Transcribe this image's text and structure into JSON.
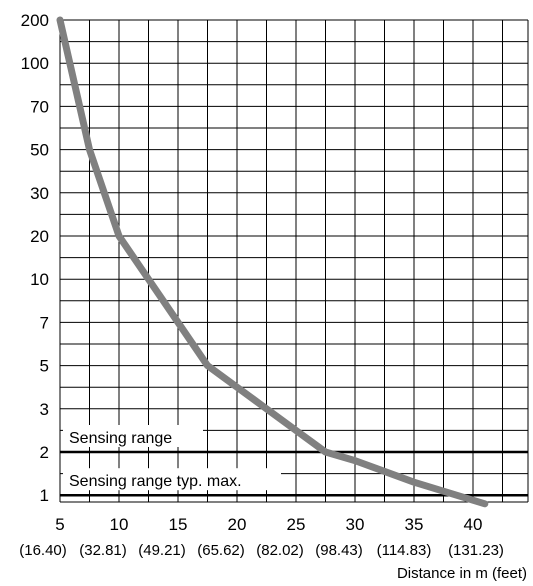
{
  "chart_data": {
    "type": "line",
    "title": "",
    "xlabel": "Distance in m (feet)",
    "ylabel": "",
    "x_ticks": [
      "5",
      "10",
      "15",
      "20",
      "25",
      "30",
      "35",
      "40"
    ],
    "x_tick_values": [
      5,
      10,
      15,
      20,
      25,
      30,
      35,
      40
    ],
    "x_tick_sub_labels": [
      "(16.40)",
      "(32.81)",
      "(49.21)",
      "(65.62)",
      "(82.02)",
      "(98.43)",
      "(114.83)",
      "(131.23)"
    ],
    "y_ticks": [
      "200",
      "100",
      "70",
      "50",
      "30",
      "20",
      "10",
      "7",
      "5",
      "3",
      "2",
      "1"
    ],
    "xlim": [
      5,
      42
    ],
    "grid": true,
    "series": [
      {
        "color": "#808080",
        "points": [
          {
            "x": 5.0,
            "y": "200"
          },
          {
            "x": 7.5,
            "y": "50"
          },
          {
            "x": 10.0,
            "y": "20"
          },
          {
            "x": 12.5,
            "y": "10"
          },
          {
            "x": 15.0,
            "y": "7"
          },
          {
            "x": 17.5,
            "y": "5"
          },
          {
            "x": 20.0,
            "y": "4"
          },
          {
            "x": 22.5,
            "y": "3"
          },
          {
            "x": 25.0,
            "y": "2.5"
          },
          {
            "x": 27.5,
            "y": "2"
          },
          {
            "x": 30.0,
            "y": "1.8"
          },
          {
            "x": 35.0,
            "y": "1.3"
          },
          {
            "x": 41.0,
            "y": "0.8"
          }
        ]
      }
    ],
    "reference_lines": [
      {
        "label": "Sensing range",
        "y": "2",
        "color": "#000000"
      },
      {
        "label": "Sensing range typ. max.",
        "y": "1",
        "color": "#000000"
      }
    ]
  }
}
